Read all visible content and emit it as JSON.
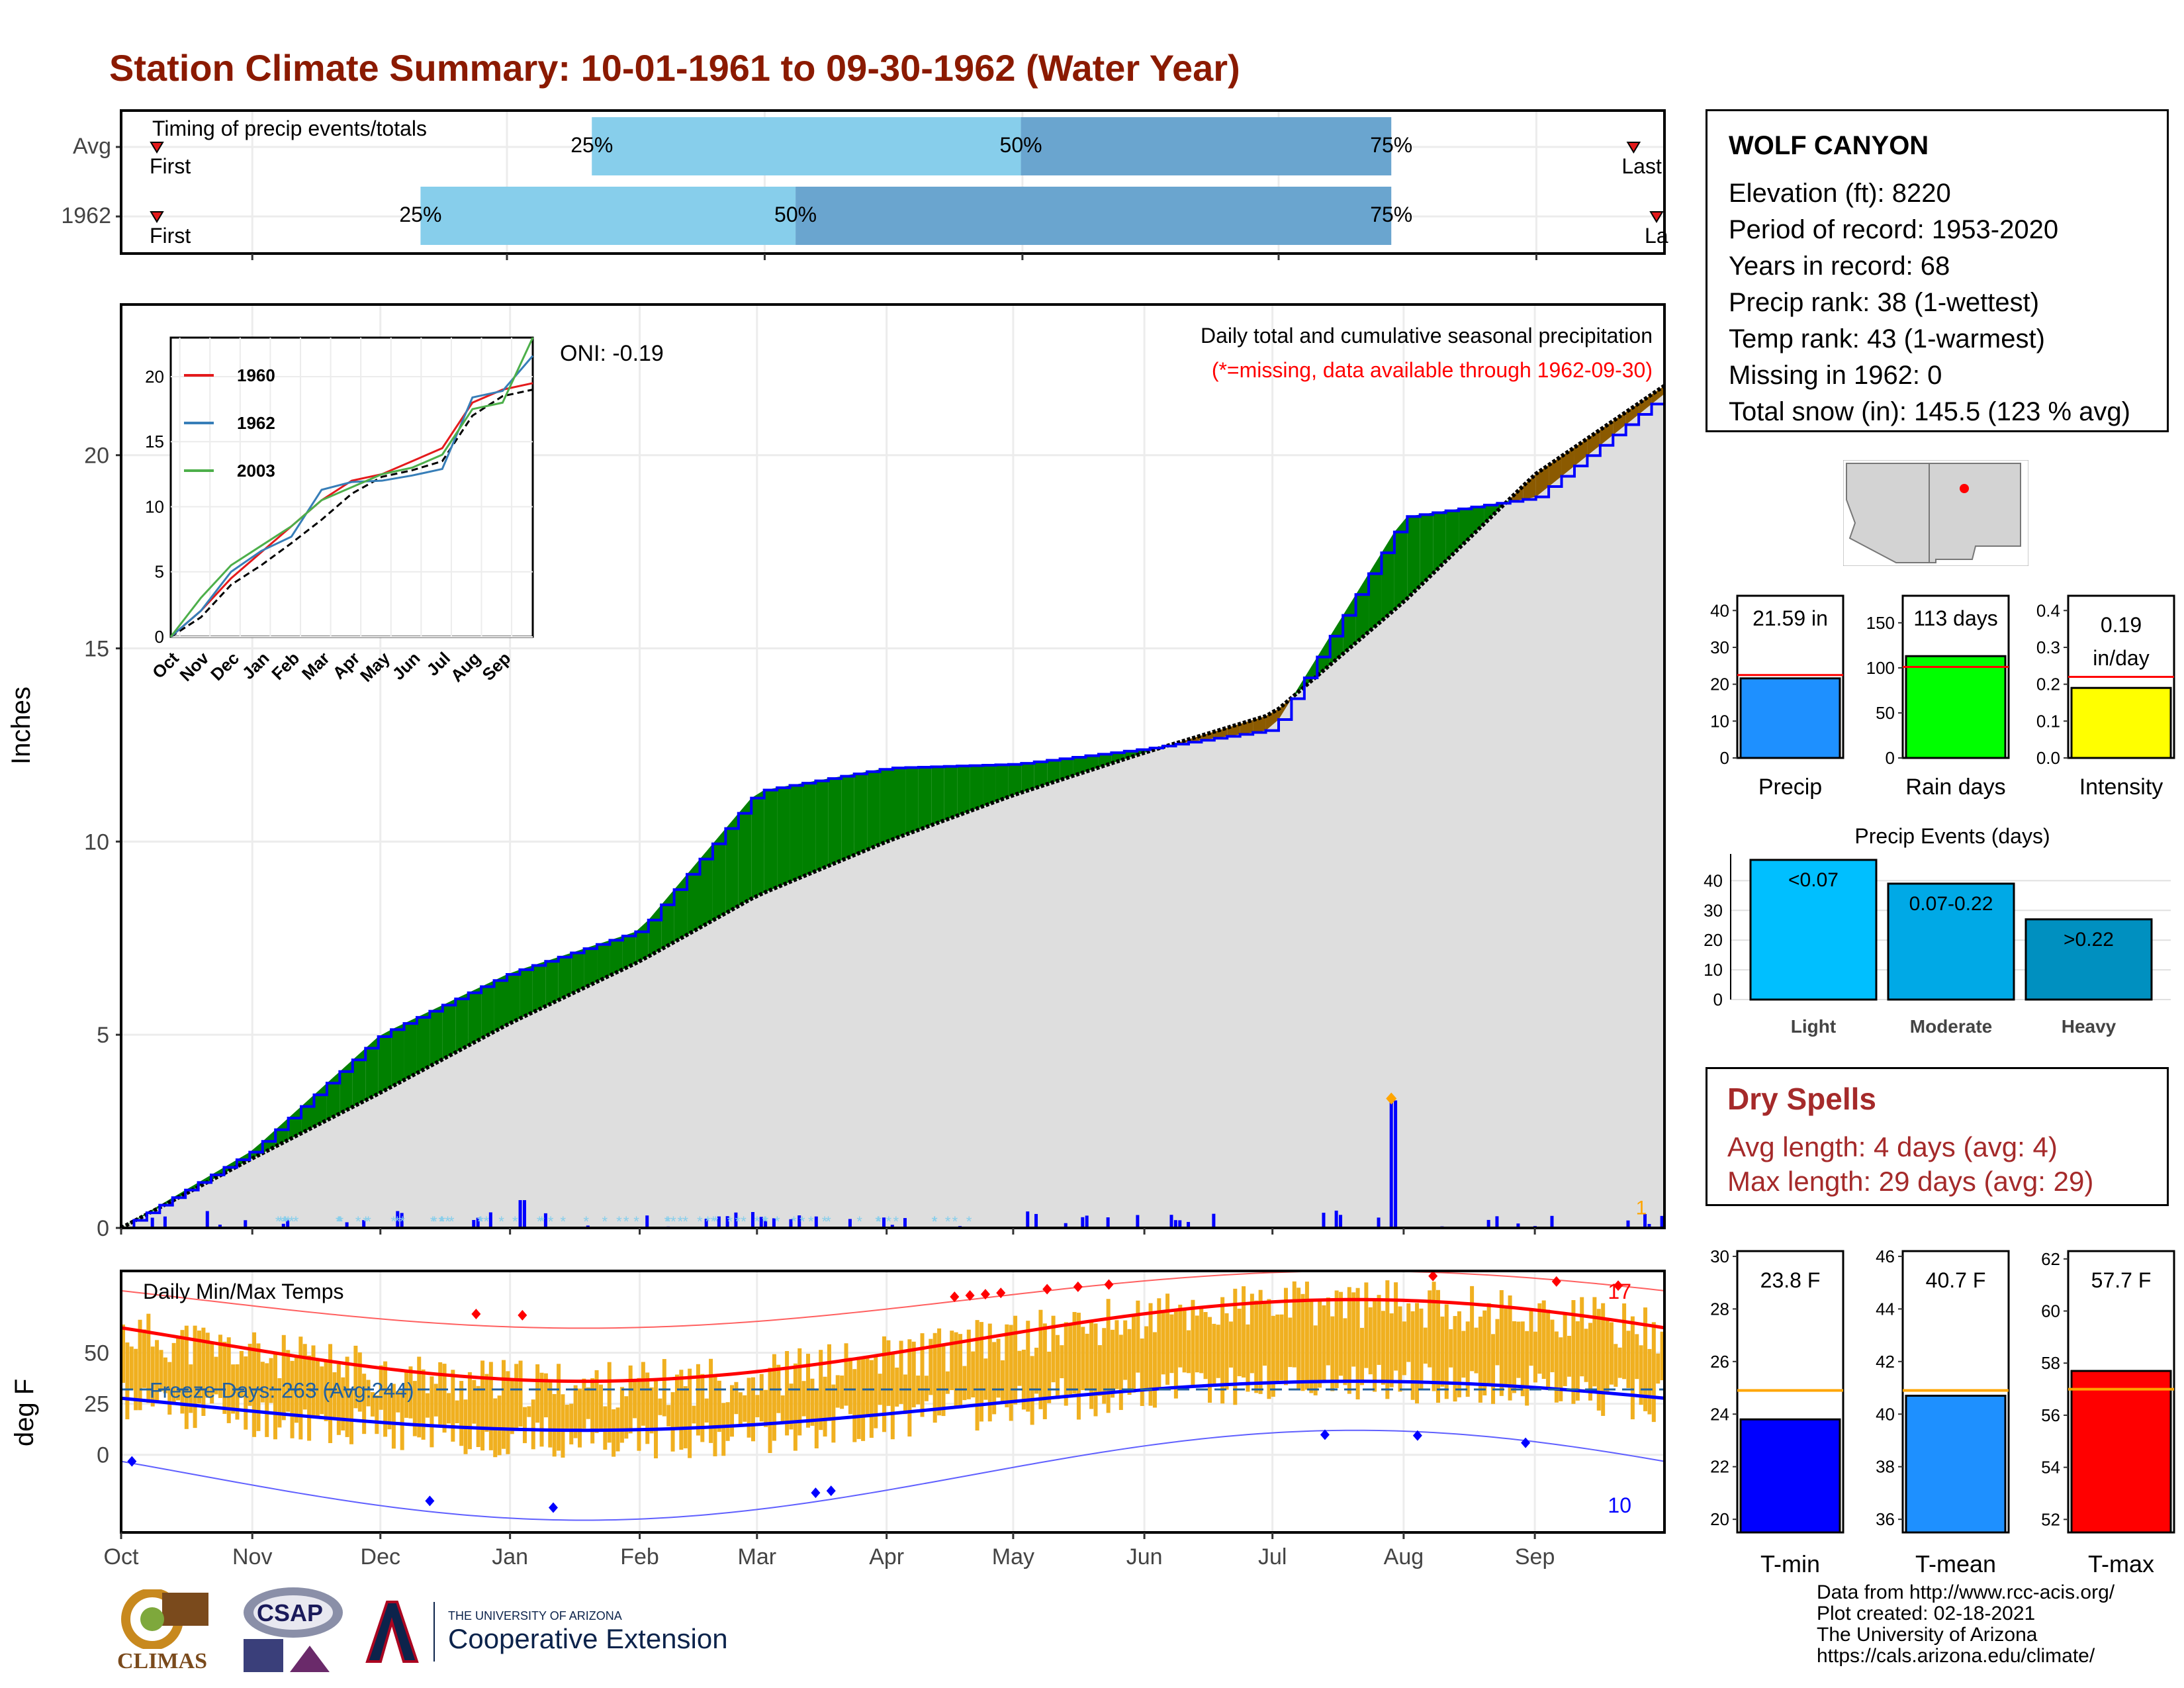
{
  "header": {
    "title": "Station Climate Summary: 10-01-1961 to 09-30-1962 (Water Year)"
  },
  "timing": {
    "label": "Timing of precip events/totals",
    "rows": [
      {
        "name": "Avg",
        "q25": 0.305,
        "q50": 0.583,
        "q75": 0.823,
        "first_label": "First",
        "last_label": "Last",
        "labels": [
          "25%",
          "50%",
          "75%"
        ]
      },
      {
        "name": "1962",
        "q25": 0.194,
        "q50": 0.437,
        "q75": 0.823,
        "first_label": "First",
        "last_label": "La",
        "labels": [
          "25%",
          "50%",
          "75%"
        ]
      }
    ]
  },
  "main_panel": {
    "ylabel": "Inches",
    "yticks": [
      "0",
      "5",
      "10",
      "15",
      "20"
    ],
    "note_title": "Daily total and cumulative seasonal precipitation",
    "note_missing": "(*=missing, data available through 1962-09-30)",
    "oni": "ONI: -0.19",
    "annot_count": "1"
  },
  "inset": {
    "yticks": [
      "0",
      "5",
      "10",
      "15",
      "20"
    ],
    "xticks": [
      "Oct",
      "Nov",
      "Dec",
      "Jan",
      "Feb",
      "Mar",
      "Apr",
      "May",
      "Jun",
      "Jul",
      "Aug",
      "Sep"
    ],
    "legend": [
      {
        "name": "1960",
        "color": "#e41a1c"
      },
      {
        "name": "1962",
        "color": "#377eb8"
      },
      {
        "name": "2003",
        "color": "#4daf4a"
      }
    ]
  },
  "temp_panel": {
    "ylabel": "deg F",
    "title": "Daily Min/Max Temps",
    "freeze": "Freeze Days: 263 (Avg:244)",
    "yticks": [
      "0",
      "25",
      "50"
    ],
    "record_high_count": "17",
    "record_low_count": "10",
    "xticks": [
      "Oct",
      "Nov",
      "Dec",
      "Jan",
      "Feb",
      "Mar",
      "Apr",
      "May",
      "Jun",
      "Jul",
      "Aug",
      "Sep"
    ]
  },
  "station": {
    "name": "WOLF CANYON",
    "lines": [
      "Elevation (ft): 8220",
      "Period of record: 1953-2020",
      "Years in record: 68",
      "Precip rank: 38 (1-wettest)",
      "Temp rank: 43 (1-warmest)",
      "Missing in 1962: 0",
      "Total snow (in): 145.5 (123 % avg)"
    ]
  },
  "mini_bars": [
    {
      "label": "Precip",
      "value_text": "21.59 in",
      "value": 21.59,
      "avg": 22.5,
      "ymax": 44,
      "yticks": [
        "0",
        "10",
        "20",
        "30",
        "40"
      ],
      "color": "#1e90ff"
    },
    {
      "label": "Rain days",
      "value_text": "113 days",
      "value": 113,
      "avg": 101,
      "ymax": 180,
      "yticks": [
        "0",
        "50",
        "100",
        "150"
      ],
      "color": "#00ff00"
    },
    {
      "label": "Intensity",
      "value_text": "0.19 in/day",
      "value": 0.19,
      "avg": 0.22,
      "ymax": 0.44,
      "yticks": [
        "0.0",
        "0.1",
        "0.2",
        "0.3",
        "0.4"
      ],
      "color": "#ffff00"
    }
  ],
  "precip_events": {
    "title": "Precip Events (days)",
    "yticks": [
      "0",
      "10",
      "20",
      "30",
      "40"
    ],
    "bars": [
      {
        "category": "Light",
        "label": "<0.07",
        "value": 47,
        "color": "#00bfff"
      },
      {
        "category": "Moderate",
        "label": "0.07-0.22",
        "value": 39,
        "color": "#00a9e6"
      },
      {
        "category": "Heavy",
        "label": ">0.22",
        "value": 27,
        "color": "#0090c0"
      }
    ]
  },
  "dry_spells": {
    "title": "Dry Spells",
    "avg_length": "Avg length: 4 days (avg: 4)",
    "max_length": "Max length: 29 days (avg: 29)"
  },
  "temp_bars": [
    {
      "label": "T-min",
      "value_text": "23.8 F",
      "value": 23.8,
      "avg": 24.9,
      "ymin": 19.5,
      "ymax": 30.2,
      "yticks": [
        "20",
        "22",
        "24",
        "26",
        "28",
        "30"
      ],
      "color": "#0000ff"
    },
    {
      "label": "T-mean",
      "value_text": "40.7 F",
      "value": 40.7,
      "avg": 40.9,
      "ymin": 35.5,
      "ymax": 46.2,
      "yticks": [
        "36",
        "38",
        "40",
        "42",
        "44",
        "46"
      ],
      "color": "#1e90ff"
    },
    {
      "label": "T-max",
      "value_text": "57.7 F",
      "value": 57.7,
      "avg": 57.0,
      "ymin": 51.5,
      "ymax": 62.3,
      "yticks": [
        "52",
        "54",
        "56",
        "58",
        "60",
        "62"
      ],
      "color": "#ff0000"
    }
  ],
  "footer": {
    "lines": [
      "Data from http://www.rcc-acis.org/",
      "Plot created: 02-18-2021",
      "The University of Arizona",
      "https://cals.arizona.edu/climate/"
    ],
    "logo1": "CLIMAS",
    "logo2": "CSAP",
    "logo3_small": "THE UNIVERSITY OF ARIZONA",
    "logo3_big": "Cooperative Extension"
  },
  "chart_data": {
    "type": "area",
    "title": "Daily total and cumulative seasonal precipitation",
    "ylabel": "Inches",
    "ylim": [
      0,
      24
    ],
    "x": [
      "Oct",
      "Nov",
      "Dec",
      "Jan",
      "Feb",
      "Mar",
      "Apr",
      "May",
      "Jun",
      "Jul",
      "Aug",
      "Sep",
      "Sep30"
    ],
    "series": [
      {
        "name": "1962",
        "values": [
          0.0,
          2.0,
          5.0,
          6.6,
          7.7,
          11.3,
          11.9,
          12.0,
          12.4,
          12.9,
          18.4,
          18.9,
          21.59
        ]
      },
      {
        "values": [
          0.0,
          1.8,
          3.5,
          5.3,
          6.9,
          8.6,
          10.0,
          11.2,
          12.3,
          13.3,
          16.2,
          19.5,
          21.8
        ]
      }
    ]
  }
}
